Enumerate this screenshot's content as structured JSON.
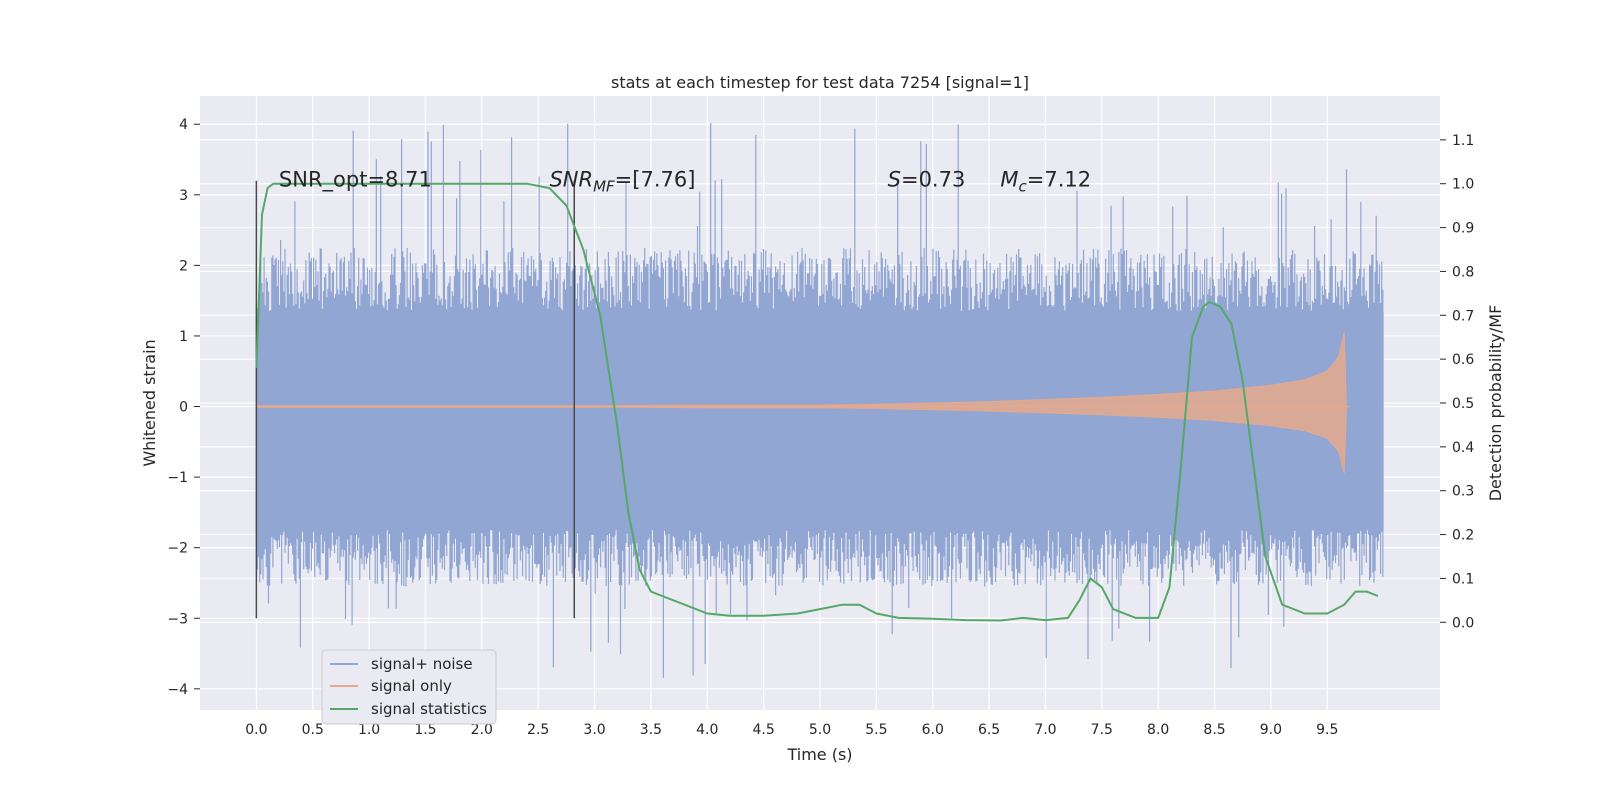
{
  "chart_data": {
    "type": "line",
    "title": "stats at each timestep for test data 7254 [signal=1]",
    "xlabel": "Time (s)",
    "ylabel_left": "Whitened strain",
    "ylabel_right": "Detection probability/MF",
    "xlim": [
      -0.5,
      10.5
    ],
    "ylim_left": [
      -4.3,
      4.4
    ],
    "ylim_right": [
      -0.2,
      1.2
    ],
    "x_ticks": [
      "0.0",
      "0.5",
      "1.0",
      "1.5",
      "2.0",
      "2.5",
      "3.0",
      "3.5",
      "4.0",
      "4.5",
      "5.0",
      "5.5",
      "6.0",
      "6.5",
      "7.0",
      "7.5",
      "8.0",
      "8.5",
      "9.0",
      "9.5"
    ],
    "y_ticks_left": [
      "4",
      "3",
      "2",
      "1",
      "0",
      "−1",
      "−2",
      "−3",
      "−4"
    ],
    "y_ticks_right": [
      "1.1",
      "1.0",
      "0.9",
      "0.8",
      "0.7",
      "0.6",
      "0.5",
      "0.4",
      "0.3",
      "0.2",
      "0.1",
      "0.0"
    ],
    "grid": true,
    "legend_position": "lower-left",
    "annotations": [
      {
        "text": "SNR_opt=8.71",
        "x": 0.2,
        "y": 3.2
      },
      {
        "text": "=[7.76]",
        "prefix": "SNR",
        "sub": "MF",
        "x": 2.6,
        "y": 3.2,
        "math": true
      },
      {
        "text": "=0.73",
        "prefix": "S",
        "x": 5.6,
        "y": 3.2,
        "math": true
      },
      {
        "text": "=7.12",
        "prefix": "M",
        "sub": "c",
        "x": 6.6,
        "y": 3.2,
        "math": true
      }
    ],
    "vlines": [
      {
        "x": 0.0,
        "ymin": -3.0,
        "ymax": 3.2
      },
      {
        "x": 2.82,
        "ymin": -3.0,
        "ymax": 3.2
      }
    ],
    "series": [
      {
        "name": "signal+ noise",
        "axis": "left",
        "color": "#92a6d3",
        "x_range": [
          0.0,
          10.0
        ],
        "band_low": -1.75,
        "band_high": 1.35,
        "spike_max": 4.05,
        "spike_min": -3.9
      },
      {
        "name": "signal only",
        "axis": "left",
        "color": "#e5a98d",
        "x": [
          0.0,
          1.0,
          2.0,
          3.0,
          4.0,
          5.0,
          5.5,
          6.0,
          6.5,
          7.0,
          7.5,
          8.0,
          8.5,
          9.0,
          9.3,
          9.5,
          9.6,
          9.65,
          9.67
        ],
        "envelope": [
          0.01,
          0.01,
          0.01,
          0.01,
          0.02,
          0.02,
          0.03,
          0.05,
          0.07,
          0.1,
          0.13,
          0.17,
          0.22,
          0.3,
          0.38,
          0.5,
          0.7,
          1.05,
          0.0
        ]
      },
      {
        "name": "signal statistics",
        "axis": "right",
        "color": "#55a868",
        "x": [
          0.0,
          0.05,
          0.1,
          0.15,
          0.3,
          0.6,
          1.0,
          1.5,
          2.0,
          2.4,
          2.6,
          2.75,
          2.9,
          3.05,
          3.2,
          3.3,
          3.4,
          3.5,
          3.6,
          3.8,
          4.0,
          4.2,
          4.5,
          4.8,
          5.0,
          5.2,
          5.35,
          5.5,
          5.7,
          6.0,
          6.3,
          6.6,
          6.8,
          7.0,
          7.2,
          7.3,
          7.4,
          7.5,
          7.6,
          7.8,
          8.0,
          8.1,
          8.2,
          8.3,
          8.4,
          8.45,
          8.55,
          8.65,
          8.75,
          8.85,
          8.95,
          9.1,
          9.3,
          9.5,
          9.65,
          9.75,
          9.85,
          9.95
        ],
        "y": [
          0.58,
          0.93,
          0.99,
          1.0,
          1.0,
          1.0,
          1.0,
          1.0,
          1.0,
          1.0,
          0.99,
          0.95,
          0.85,
          0.7,
          0.45,
          0.25,
          0.12,
          0.07,
          0.06,
          0.04,
          0.02,
          0.015,
          0.015,
          0.02,
          0.03,
          0.04,
          0.04,
          0.02,
          0.01,
          0.008,
          0.005,
          0.004,
          0.01,
          0.005,
          0.01,
          0.05,
          0.1,
          0.08,
          0.03,
          0.01,
          0.01,
          0.08,
          0.35,
          0.65,
          0.72,
          0.73,
          0.72,
          0.68,
          0.55,
          0.35,
          0.15,
          0.04,
          0.02,
          0.02,
          0.04,
          0.07,
          0.07,
          0.06
        ]
      }
    ]
  }
}
